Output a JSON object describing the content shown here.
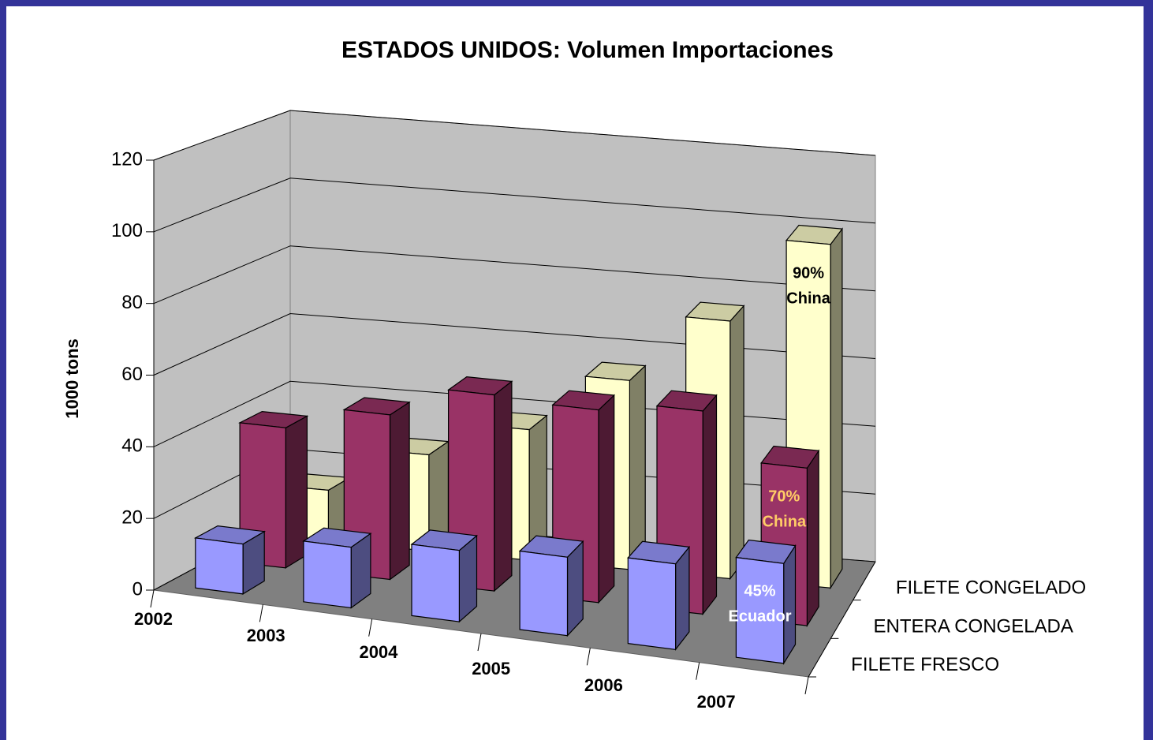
{
  "chart_data": {
    "type": "bar3d",
    "title": "ESTADOS UNIDOS: Volumen Importaciones",
    "y_label": "1000 tons",
    "categories": [
      "2002",
      "2003",
      "2004",
      "2005",
      "2006",
      "2007"
    ],
    "series": [
      {
        "name": "FILETE FRESCO",
        "color": "#9999ff",
        "values": [
          14,
          17,
          20,
          22,
          24,
          28
        ],
        "annotations": [
          null,
          null,
          null,
          null,
          null,
          [
            "45%",
            "Ecuador"
          ]
        ],
        "annotation_color": "#ffffff"
      },
      {
        "name": "ENTERA CONGELADA",
        "color": "#993366",
        "values": [
          40,
          47,
          56,
          55,
          58,
          45
        ],
        "annotations": [
          null,
          null,
          null,
          null,
          null,
          [
            "70%",
            "China"
          ]
        ],
        "annotation_color": "#ffcc66"
      },
      {
        "name": "FILETE CONGELADO",
        "color": "#ffffcc",
        "values": [
          15,
          28,
          38,
          55,
          75,
          100
        ],
        "annotations": [
          null,
          null,
          null,
          null,
          null,
          [
            "90%",
            "China"
          ]
        ],
        "annotation_color": "#000000"
      }
    ],
    "ylim": [
      0,
      120
    ],
    "yticks": [
      0,
      20,
      40,
      60,
      80,
      100,
      120
    ],
    "grid": true
  }
}
